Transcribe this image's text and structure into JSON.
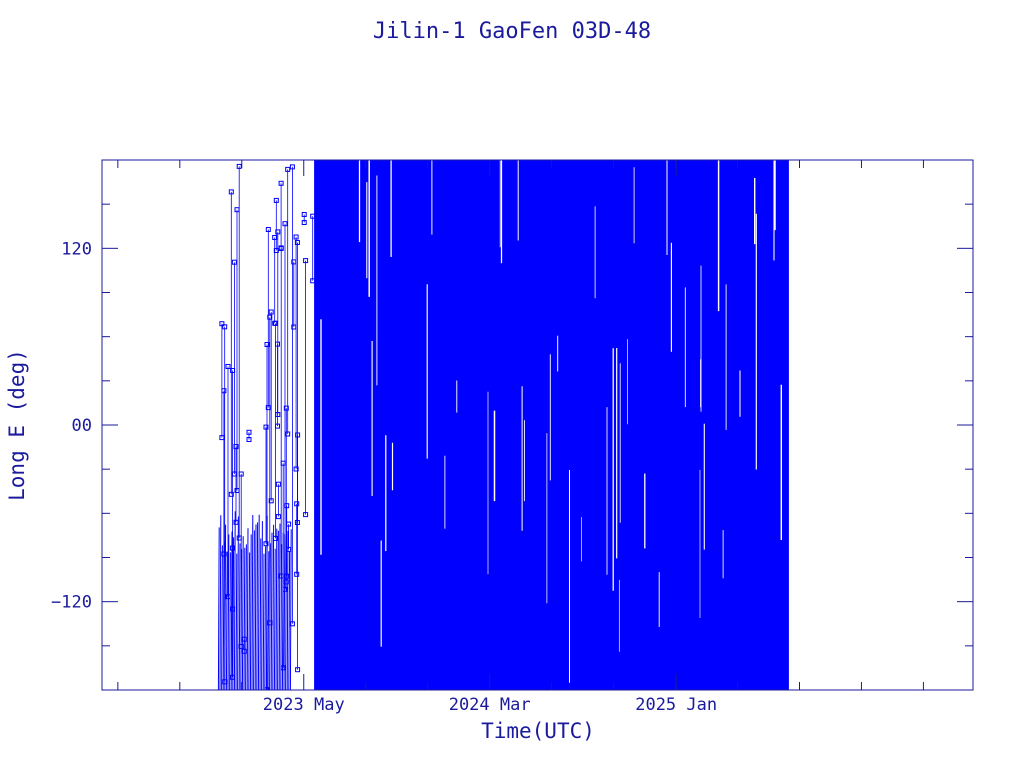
{
  "chart_data": {
    "type": "line",
    "title": "Jilin-1 GaoFen 03D-48",
    "xlabel": "Time(UTC)",
    "ylabel": "Long E (deg)",
    "x_range": [
      "2022-06-04",
      "2026-05-03"
    ],
    "ylim": [
      -180,
      180
    ],
    "data_span": [
      "2022-12-12",
      "2025-07-05"
    ],
    "x_ticks": [
      {
        "label": "2023 May",
        "date": "2023-05-01"
      },
      {
        "label": "2024 Mar",
        "date": "2024-03-01"
      },
      {
        "label": "2025 Jan",
        "date": "2025-01-01"
      }
    ],
    "y_ticks": [
      {
        "label": "−120",
        "value": -120
      },
      {
        "label": "00",
        "value": 0
      },
      {
        "label": "120",
        "value": 120
      }
    ],
    "grid": false,
    "series": [
      {
        "color": "#0000ff",
        "marker": "square",
        "coverage": [
          {
            "start": "2022-12-12",
            "end": "2023-04-12",
            "density": "sparse",
            "ymin": -180,
            "ymax": 180,
            "dense_below": -88
          },
          {
            "start": "2023-04-12",
            "end": "2023-05-18",
            "density": "sparse",
            "ymin": -180,
            "ymax": 180
          },
          {
            "start": "2023-05-18",
            "end": "2025-07-05",
            "density": "dense",
            "ymin": -180,
            "ymax": 180
          }
        ]
      }
    ]
  }
}
